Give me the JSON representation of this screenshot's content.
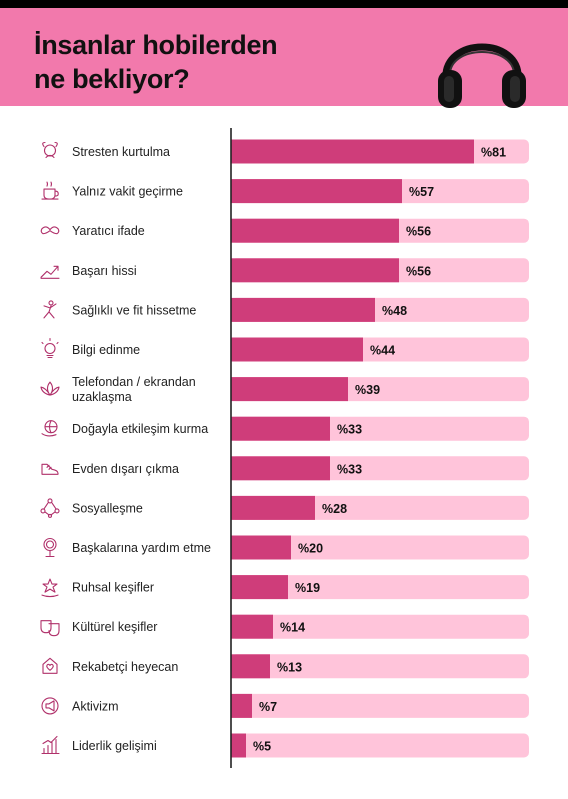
{
  "header": {
    "title_line1": "İnsanlar hobilerden",
    "title_line2": "ne bekliyor?",
    "background": "#f279ac",
    "illustration": "headphones-icon"
  },
  "colors": {
    "bar": "#cf3d7a",
    "track": "#ffc4da",
    "axis": "#222222"
  },
  "chart_data": {
    "type": "bar",
    "orientation": "horizontal",
    "title": "İnsanlar hobilerden ne bekliyor?",
    "value_prefix": "%",
    "xlim": [
      0,
      100
    ],
    "categories": [
      [
        "Stresten kurtulma"
      ],
      [
        "Yalnız vakit geçirme"
      ],
      [
        "Yaratıcı ifade"
      ],
      [
        "Başarı hissi"
      ],
      [
        "Sağlıklı ve fit hissetme"
      ],
      [
        "Bilgi edinme"
      ],
      [
        "Telefondan / ekrandan",
        "uzaklaşma"
      ],
      [
        "Doğayla etkileşim kurma"
      ],
      [
        "Evden dışarı çıkma"
      ],
      [
        "Sosyalleşme"
      ],
      [
        "Başkalarına yardım etme"
      ],
      [
        "Ruhsal keşifler"
      ],
      [
        "Kültürel keşifler"
      ],
      [
        "Rekabetçi heyecan"
      ],
      [
        "Aktivizm"
      ],
      [
        "Liderlik gelişimi"
      ]
    ],
    "values": [
      81,
      57,
      56,
      56,
      48,
      44,
      39,
      33,
      33,
      28,
      20,
      19,
      14,
      13,
      7,
      5
    ],
    "icons": [
      "calm-head-icon",
      "coffee-cup-icon",
      "mustache-icon",
      "growth-arrow-icon",
      "exercise-person-icon",
      "lightbulb-head-icon",
      "lotus-icon",
      "globe-hand-icon",
      "sneaker-icon",
      "people-network-icon",
      "hand-mirror-icon",
      "hand-star-icon",
      "theater-masks-icon",
      "trophy-heart-icon",
      "megaphone-circle-icon",
      "leader-chart-icon"
    ]
  }
}
